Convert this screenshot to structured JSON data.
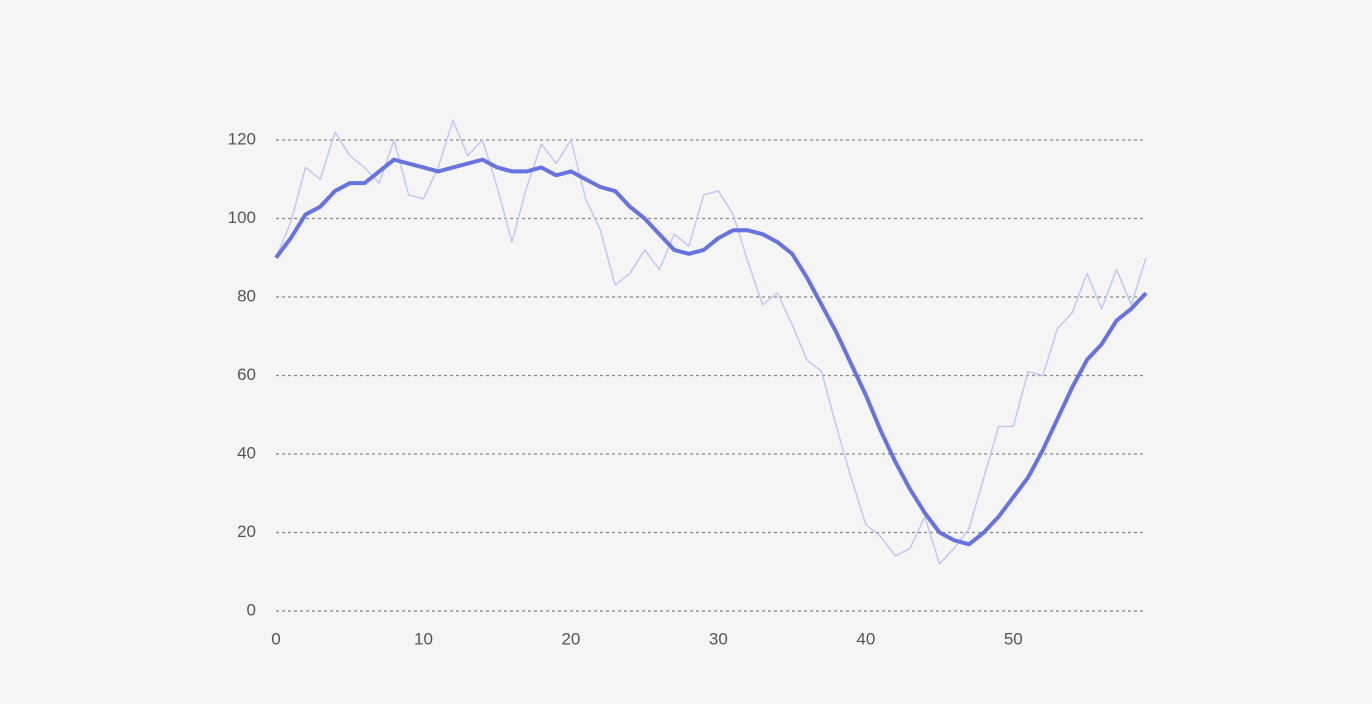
{
  "chart_data": {
    "type": "line",
    "x": [
      0,
      1,
      2,
      3,
      4,
      5,
      6,
      7,
      8,
      9,
      10,
      11,
      12,
      13,
      14,
      15,
      16,
      17,
      18,
      19,
      20,
      21,
      22,
      23,
      24,
      25,
      26,
      27,
      28,
      29,
      30,
      31,
      32,
      33,
      34,
      35,
      36,
      37,
      38,
      39,
      40,
      41,
      42,
      43,
      44,
      45,
      46,
      47,
      48,
      49,
      50,
      51,
      52,
      53,
      54,
      55,
      56,
      57,
      58,
      59
    ],
    "series": [
      {
        "color": "#c3c8f3",
        "width": 1.5,
        "values": [
          90,
          99,
          113,
          110,
          122,
          116,
          113,
          109,
          120,
          106,
          105,
          113,
          125,
          116,
          120,
          108,
          94,
          108,
          119,
          114,
          120,
          105,
          97,
          83,
          86,
          92,
          87,
          96,
          93,
          106,
          107,
          101,
          89,
          78,
          81,
          73,
          64,
          61,
          47,
          34,
          22,
          19,
          14,
          16,
          24,
          12,
          16,
          21,
          34,
          47,
          47,
          61,
          60,
          72,
          76,
          86,
          77,
          87,
          78,
          90
        ]
      },
      {
        "color": "#6673e0",
        "width": 4,
        "values": [
          90,
          95,
          101,
          103,
          107,
          109,
          109,
          112,
          115,
          114,
          113,
          112,
          113,
          114,
          115,
          113,
          112,
          112,
          113,
          111,
          112,
          110,
          108,
          107,
          103,
          100,
          96,
          92,
          91,
          92,
          95,
          97,
          97,
          96,
          94,
          91,
          85,
          78,
          71,
          63,
          55,
          46,
          38,
          31,
          25,
          20,
          18,
          17,
          20,
          24,
          29,
          34,
          41,
          49,
          57,
          64,
          68,
          74,
          77,
          81
        ]
      }
    ],
    "xlim": [
      0,
      59
    ],
    "xticks": [
      0,
      10,
      20,
      30,
      40,
      50
    ],
    "ylim": [
      0,
      120
    ],
    "yticks": [
      0,
      20,
      40,
      60,
      80,
      100,
      120
    ],
    "grid": true
  }
}
